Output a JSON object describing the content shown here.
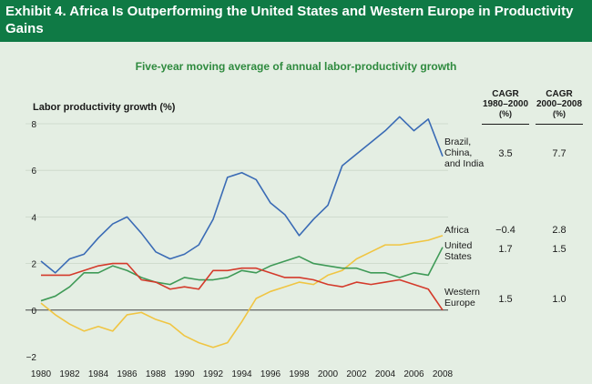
{
  "header": {
    "title": "Exhibit 4. Africa Is Outperforming the United States and Western Europe in Productivity Gains"
  },
  "colors": {
    "header_bg": "#0f7a45",
    "background": "#e4eee3",
    "brazil_china_india": "#3a6bb5",
    "africa": "#f0c542",
    "united_states": "#3f9a57",
    "western_europe": "#d43a2b"
  },
  "chart_data": {
    "type": "line",
    "title": "Five-year moving average of annual labor-productivity growth",
    "ylabel": "Labor productivity growth (%)",
    "xlabel": "",
    "ylim": [
      -2,
      8
    ],
    "xlim": [
      1980,
      2008
    ],
    "y_ticks": [
      "8",
      "6",
      "4",
      "2",
      "0",
      "−2"
    ],
    "x_ticks": [
      "1980",
      "1982",
      "1984",
      "1986",
      "1988",
      "1990",
      "1992",
      "1994",
      "1996",
      "1998",
      "2000",
      "2002",
      "2004",
      "2006",
      "2008"
    ],
    "x": [
      1980,
      1981,
      1982,
      1983,
      1984,
      1985,
      1986,
      1987,
      1988,
      1989,
      1990,
      1991,
      1992,
      1993,
      1994,
      1995,
      1996,
      1997,
      1998,
      1999,
      2000,
      2001,
      2002,
      2003,
      2004,
      2005,
      2006,
      2007,
      2008
    ],
    "cagr_headers": [
      {
        "label": "CAGR",
        "period": "1980–2000",
        "unit": "(%)"
      },
      {
        "label": "CAGR",
        "period": "2000–2008",
        "unit": "(%)"
      }
    ],
    "series": [
      {
        "name": "Brazil,\nChina,\nand India",
        "color": "#3a6bb5",
        "cagr": [
          "3.5",
          "7.7"
        ],
        "values": [
          2.1,
          1.6,
          2.2,
          2.4,
          3.1,
          3.7,
          4.0,
          3.3,
          2.5,
          2.2,
          2.4,
          2.8,
          3.9,
          5.7,
          5.9,
          5.6,
          4.6,
          4.1,
          3.2,
          3.9,
          4.5,
          6.2,
          6.7,
          7.2,
          7.7,
          8.3,
          7.7,
          8.2,
          6.6
        ]
      },
      {
        "name": "Africa",
        "color": "#f0c542",
        "cagr": [
          "−0.4",
          "2.8"
        ],
        "values": [
          0.3,
          -0.2,
          -0.6,
          -0.9,
          -0.7,
          -0.9,
          -0.2,
          -0.1,
          -0.4,
          -0.6,
          -1.1,
          -1.4,
          -1.6,
          -1.4,
          -0.5,
          0.5,
          0.8,
          1.0,
          1.2,
          1.1,
          1.5,
          1.7,
          2.2,
          2.5,
          2.8,
          2.8,
          2.9,
          3.0,
          3.2
        ]
      },
      {
        "name": "United\nStates",
        "color": "#3f9a57",
        "cagr": [
          "1.7",
          "1.5"
        ],
        "values": [
          0.4,
          0.6,
          1.0,
          1.6,
          1.6,
          1.9,
          1.7,
          1.4,
          1.2,
          1.1,
          1.4,
          1.3,
          1.3,
          1.4,
          1.7,
          1.6,
          1.9,
          2.1,
          2.3,
          2.0,
          1.9,
          1.8,
          1.8,
          1.6,
          1.6,
          1.4,
          1.6,
          1.5,
          2.7
        ]
      },
      {
        "name": "Western\nEurope",
        "color": "#d43a2b",
        "cagr": [
          "1.5",
          "1.0"
        ],
        "values": [
          1.5,
          1.5,
          1.5,
          1.7,
          1.9,
          2.0,
          2.0,
          1.3,
          1.2,
          0.9,
          1.0,
          0.9,
          1.7,
          1.7,
          1.8,
          1.8,
          1.6,
          1.4,
          1.4,
          1.3,
          1.1,
          1.0,
          1.2,
          1.1,
          1.2,
          1.3,
          1.1,
          0.9,
          0.0
        ]
      }
    ]
  }
}
